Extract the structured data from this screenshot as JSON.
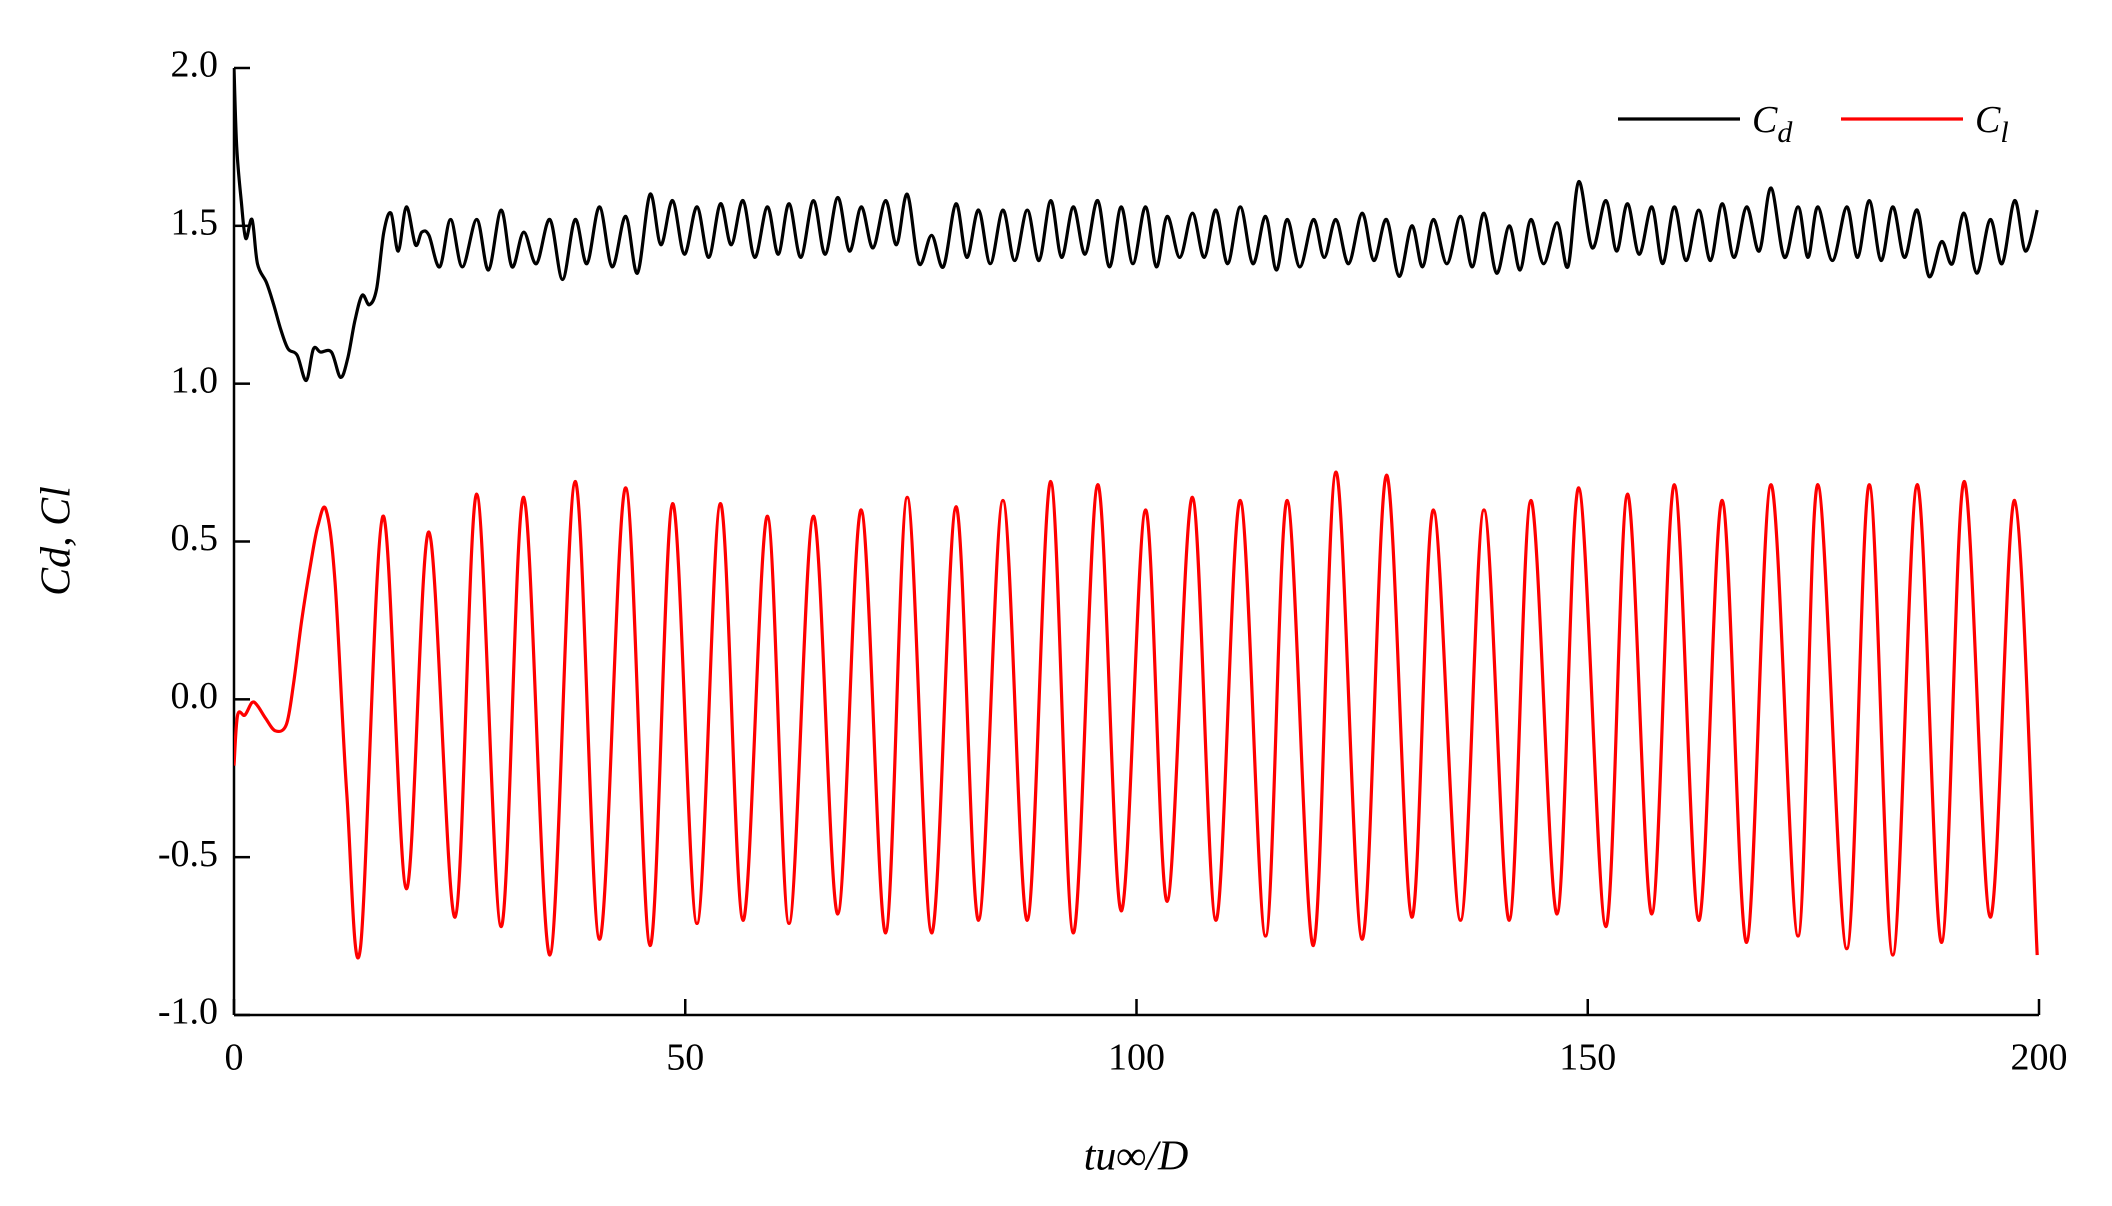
{
  "chart_data": {
    "type": "line",
    "xlabel": "tu∞/D",
    "ylabel": "Cd, Cl",
    "xlim": [
      0,
      200
    ],
    "xticks": [
      0,
      50,
      100,
      150,
      200
    ],
    "ylim": [
      -1,
      2
    ],
    "yticks": [
      {
        "value": -1,
        "label": "-1.0"
      },
      -0.5,
      {
        "value": 0,
        "label": "0.0"
      },
      0.5,
      {
        "value": 1,
        "label": "1.0"
      },
      1.5,
      {
        "value": 2,
        "label": "2.0"
      }
    ],
    "legend": "upper right",
    "series": [
      {
        "name": "Cd",
        "color": "#000000",
        "x": [
          0,
          0.3,
          0.8,
          1.3,
          2.0,
          2.6,
          3.6,
          4.4,
          5.2,
          6.0,
          7.0,
          8.0,
          8.8,
          9.6,
          10.8,
          11.8,
          12.6,
          13.4,
          14.2,
          15.0,
          15.8,
          16.6,
          17.4,
          18.2,
          19.1,
          20.1,
          20.8,
          21.6,
          22.8,
          24.0,
          25.3,
          26.9,
          28.2,
          29.6,
          30.8,
          32.1,
          33.5,
          35.0,
          36.4,
          37.8,
          39.1,
          40.5,
          41.9,
          43.4,
          44.7,
          46.1,
          47.3,
          48.6,
          49.9,
          51.3,
          52.6,
          53.9,
          55.1,
          56.4,
          57.7,
          59.1,
          60.3,
          61.5,
          62.8,
          64.2,
          65.5,
          66.9,
          68.2,
          69.5,
          70.8,
          72.2,
          73.4,
          74.6,
          75.9,
          77.3,
          78.6,
          80.0,
          81.2,
          82.5,
          83.8,
          85.2,
          86.5,
          87.9,
          89.2,
          90.5,
          91.7,
          93.0,
          94.3,
          95.7,
          97.0,
          98.3,
          99.6,
          101.0,
          102.2,
          103.4,
          104.8,
          106.2,
          107.5,
          108.8,
          110.1,
          111.5,
          112.9,
          114.3,
          115.5,
          116.7,
          118.1,
          119.6,
          120.8,
          122.1,
          123.5,
          125.0,
          126.3,
          127.7,
          129.1,
          130.5,
          131.7,
          132.9,
          134.4,
          135.9,
          137.2,
          138.5,
          139.9,
          141.3,
          142.5,
          143.7,
          145.1,
          146.6,
          147.8,
          149.0,
          150.5,
          152.0,
          153.2,
          154.4,
          155.7,
          157.1,
          158.3,
          159.6,
          160.9,
          162.3,
          163.6,
          164.9,
          166.2,
          167.6,
          169.0,
          170.3,
          171.8,
          173.3,
          174.4,
          175.5,
          177.1,
          178.7,
          179.9,
          181.2,
          182.5,
          183.8,
          185.1,
          186.5,
          187.8,
          189.2,
          190.4,
          191.7,
          193.1,
          194.6,
          195.9,
          197.3,
          198.5,
          199.8
        ],
        "values": [
          2.0,
          1.75,
          1.58,
          1.46,
          1.52,
          1.38,
          1.32,
          1.25,
          1.17,
          1.11,
          1.09,
          1.01,
          1.11,
          1.1,
          1.1,
          1.02,
          1.08,
          1.2,
          1.28,
          1.25,
          1.3,
          1.48,
          1.54,
          1.42,
          1.56,
          1.44,
          1.48,
          1.47,
          1.37,
          1.52,
          1.37,
          1.52,
          1.36,
          1.55,
          1.37,
          1.48,
          1.38,
          1.52,
          1.33,
          1.52,
          1.38,
          1.56,
          1.37,
          1.53,
          1.35,
          1.6,
          1.44,
          1.58,
          1.41,
          1.56,
          1.4,
          1.57,
          1.44,
          1.58,
          1.4,
          1.56,
          1.41,
          1.57,
          1.4,
          1.58,
          1.41,
          1.59,
          1.42,
          1.56,
          1.43,
          1.58,
          1.44,
          1.6,
          1.38,
          1.47,
          1.37,
          1.57,
          1.4,
          1.55,
          1.38,
          1.55,
          1.39,
          1.55,
          1.39,
          1.58,
          1.4,
          1.56,
          1.41,
          1.58,
          1.37,
          1.56,
          1.38,
          1.56,
          1.37,
          1.53,
          1.4,
          1.54,
          1.4,
          1.55,
          1.38,
          1.56,
          1.38,
          1.53,
          1.36,
          1.52,
          1.37,
          1.52,
          1.4,
          1.52,
          1.38,
          1.54,
          1.39,
          1.52,
          1.34,
          1.5,
          1.37,
          1.52,
          1.38,
          1.53,
          1.37,
          1.54,
          1.35,
          1.5,
          1.36,
          1.52,
          1.38,
          1.51,
          1.37,
          1.64,
          1.43,
          1.58,
          1.42,
          1.57,
          1.41,
          1.56,
          1.38,
          1.56,
          1.39,
          1.55,
          1.39,
          1.57,
          1.4,
          1.56,
          1.42,
          1.62,
          1.4,
          1.56,
          1.4,
          1.56,
          1.39,
          1.56,
          1.4,
          1.58,
          1.39,
          1.56,
          1.4,
          1.55,
          1.34,
          1.45,
          1.38,
          1.54,
          1.35,
          1.52,
          1.38,
          1.58,
          1.42,
          1.55
        ]
      },
      {
        "name": "Cl",
        "color": "#ff0000",
        "x": [
          0,
          0.4,
          1.2,
          2.0,
          2.6,
          3.5,
          4.6,
          5.8,
          6.6,
          7.5,
          8.5,
          9.3,
          10.2,
          11.2,
          12.5,
          14.0,
          16.5,
          19.1,
          21.6,
          24.5,
          26.9,
          29.6,
          32.1,
          35.0,
          37.8,
          40.5,
          43.4,
          46.1,
          48.6,
          51.3,
          53.9,
          56.4,
          59.1,
          61.5,
          64.2,
          66.9,
          69.5,
          72.2,
          74.6,
          77.3,
          80.0,
          82.5,
          85.2,
          87.9,
          90.5,
          93.0,
          95.7,
          98.3,
          101.0,
          103.4,
          106.2,
          108.8,
          111.5,
          114.3,
          116.7,
          119.6,
          122.1,
          125.0,
          127.7,
          130.5,
          132.9,
          135.9,
          138.5,
          141.3,
          143.7,
          146.6,
          149.0,
          152.0,
          154.4,
          157.1,
          159.6,
          162.3,
          164.9,
          167.6,
          170.3,
          173.3,
          175.5,
          178.7,
          181.2,
          183.8,
          186.5,
          189.2,
          191.7,
          194.6,
          197.3,
          199.8
        ],
        "values": [
          -0.21,
          -0.05,
          -0.05,
          -0.01,
          -0.02,
          -0.06,
          -0.1,
          -0.08,
          0.05,
          0.25,
          0.43,
          0.55,
          0.6,
          0.37,
          -0.3,
          -0.79,
          0.58,
          -0.6,
          0.53,
          -0.69,
          0.65,
          -0.72,
          0.64,
          -0.81,
          0.69,
          -0.76,
          0.67,
          -0.78,
          0.62,
          -0.71,
          0.62,
          -0.7,
          0.58,
          -0.71,
          0.58,
          -0.68,
          0.6,
          -0.74,
          0.64,
          -0.74,
          0.61,
          -0.7,
          0.63,
          -0.7,
          0.69,
          -0.74,
          0.68,
          -0.67,
          0.6,
          -0.64,
          0.64,
          -0.7,
          0.63,
          -0.75,
          0.63,
          -0.78,
          0.72,
          -0.76,
          0.71,
          -0.69,
          0.6,
          -0.7,
          0.6,
          -0.7,
          0.63,
          -0.68,
          0.67,
          -0.72,
          0.65,
          -0.68,
          0.68,
          -0.7,
          0.63,
          -0.77,
          0.68,
          -0.75,
          0.68,
          -0.79,
          0.68,
          -0.81,
          0.68,
          -0.77,
          0.69,
          -0.69,
          0.63,
          -0.81
        ]
      }
    ]
  }
}
